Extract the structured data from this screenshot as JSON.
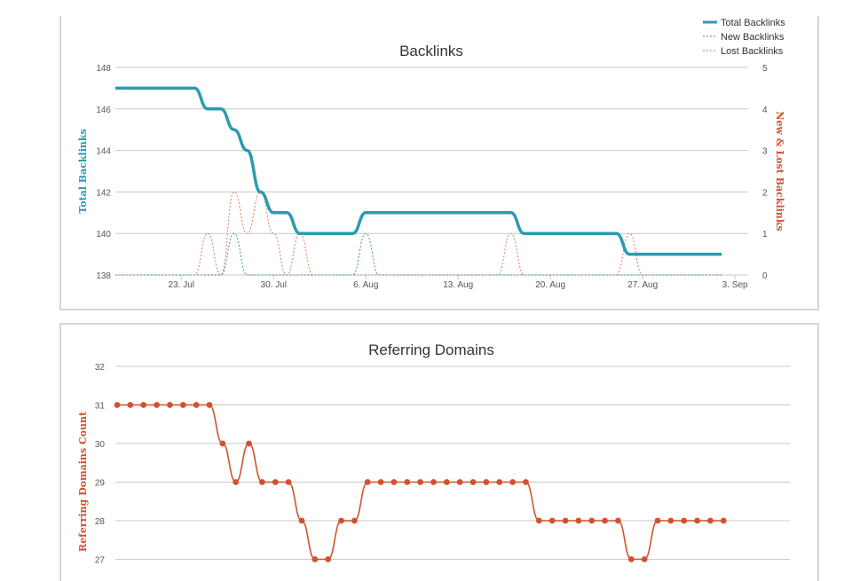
{
  "colors": {
    "total": "#2b9bb0",
    "new": "#3a9a7e",
    "lost": "#e07a5f",
    "domains": "#d2522f",
    "grid": "#c8c8c8"
  },
  "chart_data": [
    {
      "type": "line",
      "title": "Backlinks",
      "ylabel": "Total Backlinks",
      "y2label": "New & Lost Backlinks",
      "ylim": [
        138,
        148
      ],
      "yticks": [
        138,
        140,
        142,
        144,
        146,
        148
      ],
      "y2lim": [
        0,
        5
      ],
      "y2ticks": [
        0,
        1,
        2,
        3,
        4,
        5
      ],
      "xlim": [
        "2017-07-18",
        "2017-09-04"
      ],
      "xtick_labels": [
        "23. Jul",
        "30. Jul",
        "6. Aug",
        "13. Aug",
        "20. Aug",
        "27. Aug",
        "3. Sep"
      ],
      "xtick_dates": [
        "2017-07-23",
        "2017-07-30",
        "2017-08-06",
        "2017-08-13",
        "2017-08-20",
        "2017-08-27",
        "2017-09-03"
      ],
      "x": [
        "2017-07-18",
        "2017-07-19",
        "2017-07-20",
        "2017-07-21",
        "2017-07-22",
        "2017-07-23",
        "2017-07-24",
        "2017-07-25",
        "2017-07-26",
        "2017-07-27",
        "2017-07-28",
        "2017-07-29",
        "2017-07-30",
        "2017-07-31",
        "2017-08-01",
        "2017-08-02",
        "2017-08-03",
        "2017-08-04",
        "2017-08-05",
        "2017-08-06",
        "2017-08-07",
        "2017-08-08",
        "2017-08-09",
        "2017-08-10",
        "2017-08-11",
        "2017-08-12",
        "2017-08-13",
        "2017-08-14",
        "2017-08-15",
        "2017-08-16",
        "2017-08-17",
        "2017-08-18",
        "2017-08-19",
        "2017-08-20",
        "2017-08-21",
        "2017-08-22",
        "2017-08-23",
        "2017-08-24",
        "2017-08-25",
        "2017-08-26",
        "2017-08-27",
        "2017-08-28",
        "2017-08-29",
        "2017-08-30",
        "2017-08-31",
        "2017-09-01",
        "2017-09-02"
      ],
      "legend_position": "top-right",
      "series": [
        {
          "name": "Total Backlinks",
          "axis": "left",
          "style": "solid",
          "values": [
            147,
            147,
            147,
            147,
            147,
            147,
            147,
            146,
            146,
            145,
            144,
            142,
            141,
            141,
            140,
            140,
            140,
            140,
            140,
            141,
            141,
            141,
            141,
            141,
            141,
            141,
            141,
            141,
            141,
            141,
            141,
            140,
            140,
            140,
            140,
            140,
            140,
            140,
            140,
            139,
            139,
            139,
            139,
            139,
            139,
            139,
            139
          ]
        },
        {
          "name": "New Backlinks",
          "axis": "right",
          "style": "dashed",
          "values": [
            0,
            0,
            0,
            0,
            0,
            0,
            0,
            0,
            0,
            1,
            0,
            0,
            0,
            0,
            0,
            0,
            0,
            0,
            0,
            1,
            0,
            0,
            0,
            0,
            0,
            0,
            0,
            0,
            0,
            0,
            0,
            0,
            0,
            0,
            0,
            0,
            0,
            0,
            0,
            0,
            0,
            0,
            0,
            0,
            0,
            0,
            0
          ]
        },
        {
          "name": "Lost Backlinks",
          "axis": "right",
          "style": "dashed",
          "values": [
            0,
            0,
            0,
            0,
            0,
            0,
            0,
            1,
            0,
            2,
            1,
            2,
            1,
            0,
            1,
            0,
            0,
            0,
            0,
            0,
            0,
            0,
            0,
            0,
            0,
            0,
            0,
            0,
            0,
            0,
            1,
            0,
            0,
            0,
            0,
            0,
            0,
            0,
            0,
            1,
            0,
            0,
            0,
            0,
            0,
            0,
            0
          ]
        }
      ]
    },
    {
      "type": "line",
      "title": "Referring Domains",
      "ylabel": "Referring Domains Count",
      "ylim": [
        26.6,
        32
      ],
      "yticks": [
        27,
        28,
        29,
        30,
        31,
        32
      ],
      "xlim": [
        "2017-07-18",
        "2017-09-04"
      ],
      "x": [
        "2017-07-18",
        "2017-07-19",
        "2017-07-20",
        "2017-07-21",
        "2017-07-22",
        "2017-07-23",
        "2017-07-24",
        "2017-07-25",
        "2017-07-26",
        "2017-07-27",
        "2017-07-28",
        "2017-07-29",
        "2017-07-30",
        "2017-07-31",
        "2017-08-01",
        "2017-08-02",
        "2017-08-03",
        "2017-08-04",
        "2017-08-05",
        "2017-08-06",
        "2017-08-07",
        "2017-08-08",
        "2017-08-09",
        "2017-08-10",
        "2017-08-11",
        "2017-08-12",
        "2017-08-13",
        "2017-08-14",
        "2017-08-15",
        "2017-08-16",
        "2017-08-17",
        "2017-08-18",
        "2017-08-19",
        "2017-08-20",
        "2017-08-21",
        "2017-08-22",
        "2017-08-23",
        "2017-08-24",
        "2017-08-25",
        "2017-08-26",
        "2017-08-27",
        "2017-08-28",
        "2017-08-29",
        "2017-08-30",
        "2017-08-31",
        "2017-09-01",
        "2017-09-02"
      ],
      "series": [
        {
          "name": "Referring Domains",
          "values": [
            31,
            31,
            31,
            31,
            31,
            31,
            31,
            31,
            30,
            29,
            30,
            29,
            29,
            29,
            28,
            27,
            27,
            28,
            28,
            29,
            29,
            29,
            29,
            29,
            29,
            29,
            29,
            29,
            29,
            29,
            29,
            29,
            28,
            28,
            28,
            28,
            28,
            28,
            28,
            27,
            27,
            28,
            28,
            28,
            28,
            28,
            28
          ]
        }
      ]
    }
  ]
}
